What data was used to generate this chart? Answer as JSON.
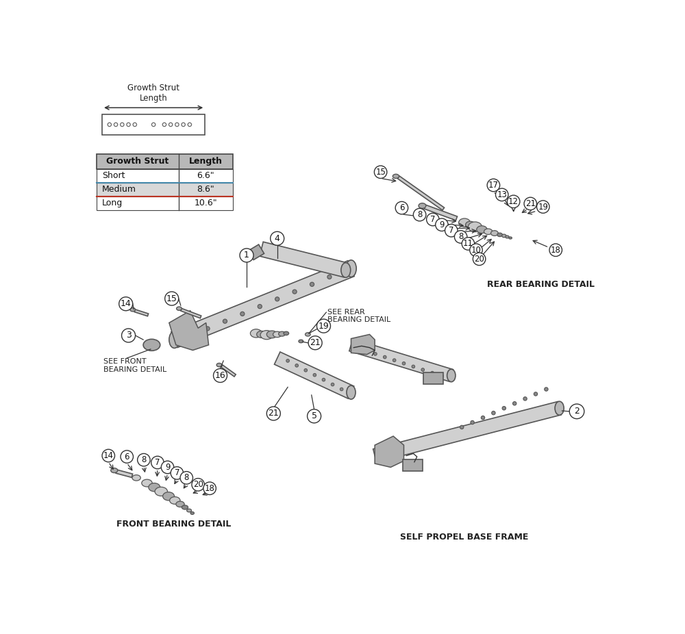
{
  "bg_color": "#ffffff",
  "table_header_color": "#b8b8b8",
  "table_medium_row_color": "#d8d8d8",
  "table_border_color": "#444444",
  "table_rows": [
    [
      "Short",
      "6.6\""
    ],
    [
      "Medium",
      "8.6\""
    ],
    [
      "Long",
      "10.6\""
    ]
  ],
  "line_color": "#333333",
  "callout_fill": "#ffffff",
  "callout_edge": "#333333",
  "part_fill": "#c8c8c8",
  "part_edge": "#555555",
  "part_dark": "#999999",
  "labels": {
    "rear_bearing_detail": "REAR BEARING DETAIL",
    "see_rear_bearing": "SEE REAR\nBEARING DETAIL",
    "front_bearing_detail": "FRONT BEARING DETAIL",
    "see_front_bearing": "SEE FRONT\nBEARING DETAIL",
    "self_propel_base": "SELF PROPEL BASE FRAME"
  }
}
